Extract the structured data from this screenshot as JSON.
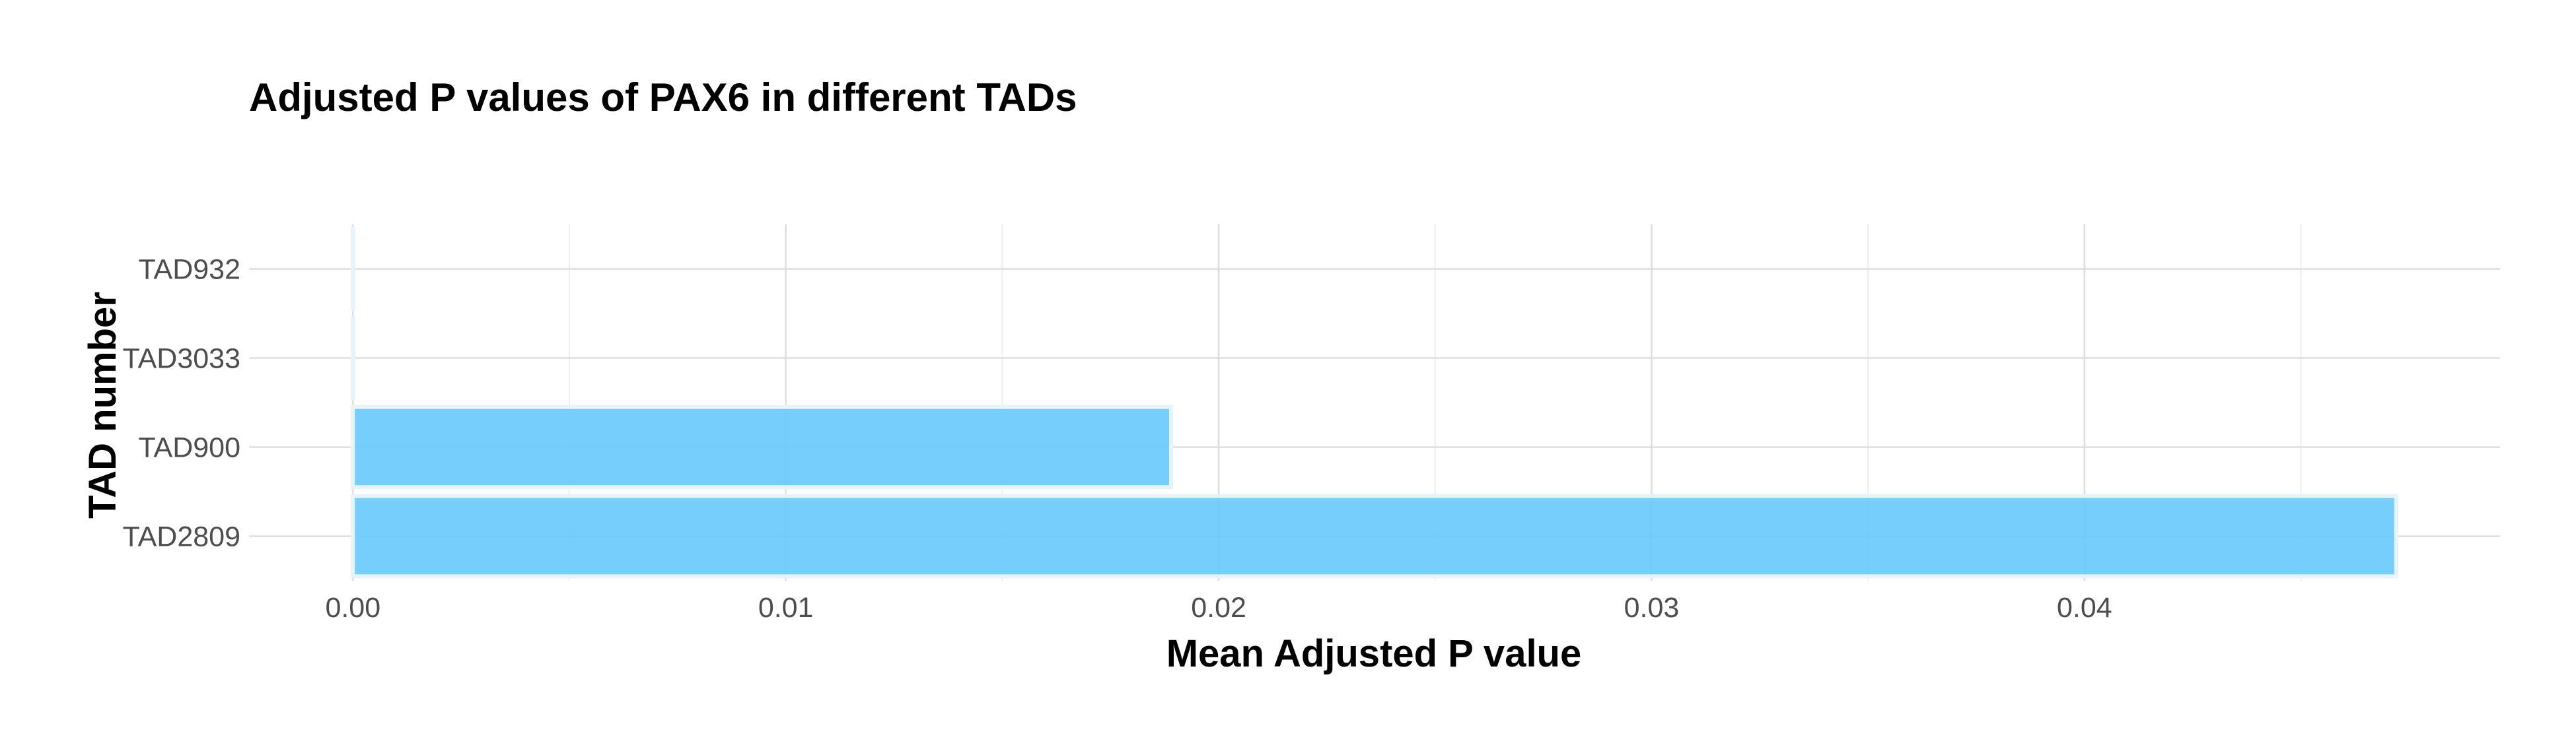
{
  "chart_data": {
    "type": "bar",
    "orientation": "horizontal",
    "title": "Adjusted P values of PAX6 in different TADs",
    "xlabel": "Mean Adjusted P value",
    "ylabel": "TAD number",
    "categories": [
      "TAD2809",
      "TAD900",
      "TAD3033",
      "TAD932"
    ],
    "values": [
      0.0472,
      0.0189,
      0.0,
      0.0
    ],
    "xlim": [
      -0.0024,
      0.0496
    ],
    "x_ticks": [
      0.0,
      0.01,
      0.02,
      0.03,
      0.04
    ],
    "x_tick_labels": [
      "0.00",
      "0.01",
      "0.02",
      "0.03",
      "0.04"
    ],
    "bar_color": "#66c9fb",
    "grid": true,
    "legend": "none"
  }
}
